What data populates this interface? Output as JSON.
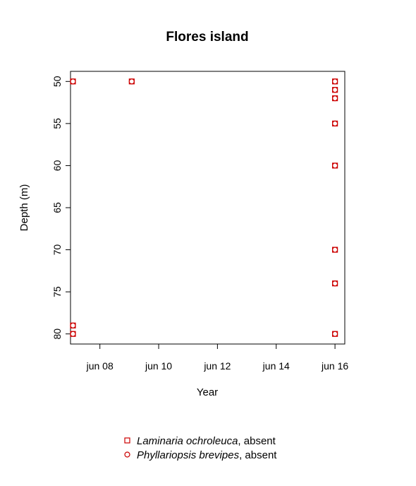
{
  "chart_data": {
    "type": "scatter",
    "title": "Flores island",
    "xlabel": "Year",
    "ylabel": "Depth (m)",
    "x_tick_labels": [
      "jun 08",
      "jun 10",
      "jun 12",
      "jun 14",
      "jun 16"
    ],
    "x_tick_values": [
      "2008-06",
      "2010-06",
      "2012-06",
      "2014-06",
      "2016-06"
    ],
    "y_ticks": [
      50,
      55,
      60,
      65,
      70,
      75,
      80
    ],
    "xlim": [
      "2007-06",
      "2016-10"
    ],
    "ylim": [
      81.2,
      48.8
    ],
    "y_reversed": true,
    "grid": false,
    "legend_placement": "bottom-center",
    "marker_color": "#cc0000",
    "series": [
      {
        "species": "Laminaria ochroleuca",
        "status": "absent",
        "marker": "square",
        "points": [
          {
            "x": "2007-07",
            "y": 50
          },
          {
            "x": "2007-07",
            "y": 79
          },
          {
            "x": "2007-07",
            "y": 80
          },
          {
            "x": "2009-07",
            "y": 50
          },
          {
            "x": "2016-06",
            "y": 50
          },
          {
            "x": "2016-06",
            "y": 51
          },
          {
            "x": "2016-06",
            "y": 52
          },
          {
            "x": "2016-06",
            "y": 55
          },
          {
            "x": "2016-06",
            "y": 60
          },
          {
            "x": "2016-06",
            "y": 70
          },
          {
            "x": "2016-06",
            "y": 74
          },
          {
            "x": "2016-06",
            "y": 80
          }
        ]
      },
      {
        "species": "Phyllariopsis brevipes",
        "status": "absent",
        "marker": "circle",
        "points": [
          {
            "x": "2007-07",
            "y": 50
          },
          {
            "x": "2007-07",
            "y": 79
          },
          {
            "x": "2007-07",
            "y": 80
          },
          {
            "x": "2009-07",
            "y": 50
          },
          {
            "x": "2016-06",
            "y": 50
          },
          {
            "x": "2016-06",
            "y": 51
          },
          {
            "x": "2016-06",
            "y": 52
          },
          {
            "x": "2016-06",
            "y": 55
          },
          {
            "x": "2016-06",
            "y": 60
          },
          {
            "x": "2016-06",
            "y": 70
          },
          {
            "x": "2016-06",
            "y": 74
          },
          {
            "x": "2016-06",
            "y": 80
          }
        ]
      }
    ]
  }
}
